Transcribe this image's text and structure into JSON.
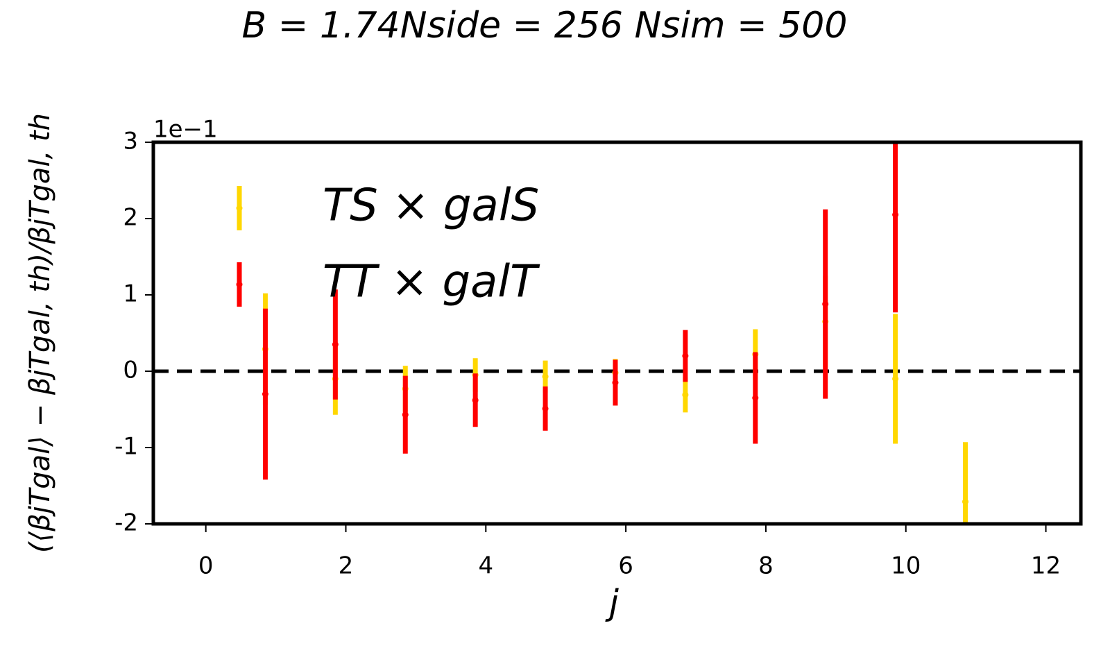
{
  "chart_data": {
    "type": "errorbar",
    "title": "B = 1.74Nside = 256 Nsim = 500",
    "x_label": "j",
    "y_label": "(⟨βjTgal⟩ − βjTgal, th)/βjTgal, th",
    "y_offset_label": "1e−1",
    "xlim": [
      -0.75,
      12.5
    ],
    "xticks": [
      0,
      2,
      4,
      6,
      8,
      10,
      12
    ],
    "ylim": [
      -2,
      3
    ],
    "yticks": [
      -2,
      -1,
      0,
      1,
      2,
      3
    ],
    "hline": 0,
    "legend": "upper left",
    "series": [
      {
        "name": "TS × galS",
        "color": "#ffd700",
        "x": [
          0.85,
          1.85,
          2.85,
          3.85,
          4.85,
          5.85,
          6.85,
          7.85,
          8.85,
          9.85,
          10.85
        ],
        "values": [
          0.29,
          -0.1,
          -0.23,
          -0.05,
          -0.07,
          -0.02,
          -0.31,
          0.22,
          0.65,
          -0.1,
          -1.71
        ],
        "errors": [
          0.73,
          0.47,
          0.3,
          0.22,
          0.21,
          0.18,
          0.23,
          0.33,
          0.6,
          0.85,
          0.78
        ]
      },
      {
        "name": "TT × galT",
        "color": "#ff0000",
        "x": [
          0.85,
          1.85,
          2.85,
          3.85,
          4.85,
          5.85,
          6.85,
          7.85,
          8.85,
          9.85
        ],
        "values": [
          -0.3,
          0.35,
          -0.57,
          -0.38,
          -0.49,
          -0.15,
          0.2,
          -0.35,
          0.88,
          2.05
        ],
        "errors": [
          1.12,
          0.72,
          0.51,
          0.35,
          0.29,
          0.3,
          0.34,
          0.6,
          1.24,
          1.28
        ]
      }
    ]
  }
}
